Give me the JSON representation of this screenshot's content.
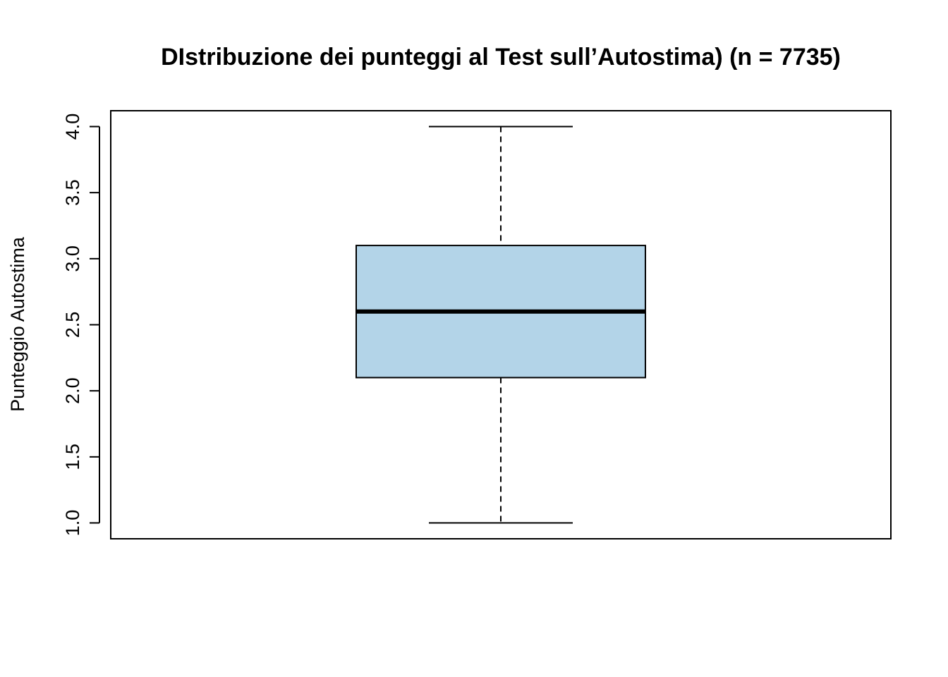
{
  "chart_data": {
    "type": "boxplot",
    "title": "DIstribuzione dei punteggi al Test sull’Autostima)  (n = 7735)",
    "xlabel": "",
    "ylabel": "Punteggio Autostima",
    "ylim": [
      0.88,
      4.12
    ],
    "yticks": [
      "1.0",
      "1.5",
      "2.0",
      "2.5",
      "3.0",
      "3.5",
      "4.0"
    ],
    "ytick_values": [
      1.0,
      1.5,
      2.0,
      2.5,
      3.0,
      3.5,
      4.0
    ],
    "box": {
      "whisker_low": 1.0,
      "q1": 2.1,
      "median": 2.6,
      "q3": 3.1,
      "whisker_high": 4.0
    },
    "n": 7735,
    "grid": false,
    "colors": {
      "box_fill": "#b3d4e8",
      "line": "#000000"
    }
  }
}
